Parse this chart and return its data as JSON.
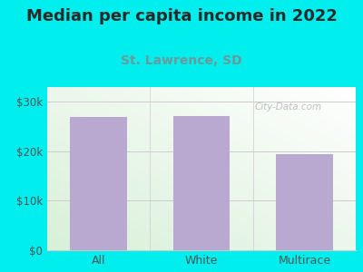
{
  "title": "Median per capita income in 2022",
  "subtitle": "St. Lawrence, SD",
  "categories": [
    "All",
    "White",
    "Multirace"
  ],
  "values": [
    27000,
    27200,
    19500
  ],
  "bar_color": "#b9a9d0",
  "title_fontsize": 13,
  "subtitle_fontsize": 10,
  "title_color": "#2a2a2a",
  "subtitle_color": "#6a9a9a",
  "background_color": "#00eeee",
  "yticks": [
    0,
    10000,
    20000,
    30000
  ],
  "ytick_labels": [
    "$0",
    "$10k",
    "$20k",
    "$30k"
  ],
  "ylim": [
    0,
    33000
  ],
  "tick_color": "#555555",
  "watermark": "City-Data.com",
  "grid_color": "#cccccc",
  "bar_width": 0.55
}
